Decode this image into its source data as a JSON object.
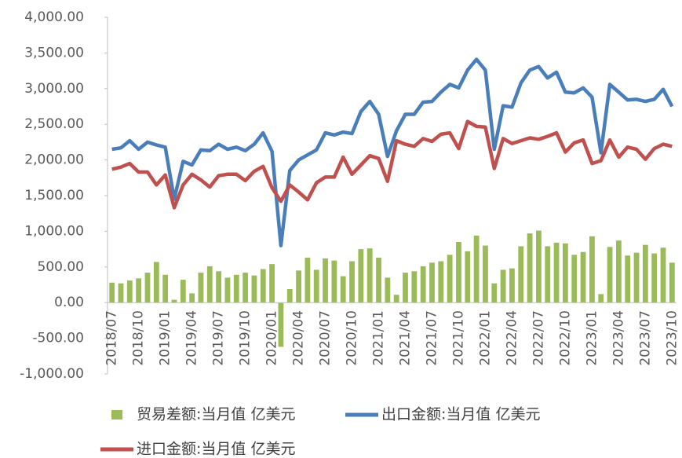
{
  "chart_data": {
    "type": "bar-line",
    "categories": [
      "2018/07",
      null,
      null,
      "2018/10",
      null,
      null,
      "2019/01",
      null,
      null,
      "2019/04",
      null,
      null,
      "2019/07",
      null,
      null,
      "2019/10",
      null,
      null,
      "2020/01",
      null,
      null,
      "2020/04",
      null,
      null,
      "2020/07",
      null,
      null,
      "2020/10",
      null,
      null,
      "2021/01",
      null,
      null,
      "2021/04",
      null,
      null,
      "2021/07",
      null,
      null,
      "2021/10",
      null,
      null,
      "2022/01",
      null,
      null,
      "2022/04",
      null,
      null,
      "2022/07",
      null,
      null,
      "2022/10",
      null,
      null,
      "2023/01",
      null,
      null,
      "2023/04",
      null,
      null,
      "2023/07",
      null,
      null,
      "2023/10"
    ],
    "series": [
      {
        "name": "贸易差额:当月值 亿美元",
        "type": "bar",
        "color": "#9bbb59",
        "values": [
          280,
          270,
          310,
          340,
          420,
          570,
          390,
          40,
          320,
          130,
          420,
          510,
          440,
          350,
          390,
          420,
          380,
          470,
          540,
          -620,
          190,
          450,
          630,
          460,
          620,
          590,
          370,
          580,
          750,
          760,
          630,
          350,
          110,
          420,
          440,
          510,
          560,
          580,
          670,
          850,
          720,
          940,
          800,
          270,
          460,
          480,
          790,
          970,
          1010,
          790,
          840,
          830,
          670,
          710,
          930,
          120,
          780,
          870,
          660,
          700,
          810,
          690,
          770,
          560
        ]
      },
      {
        "name": "出口金额:当月值 亿美元",
        "type": "line",
        "color": "#4a7ebb",
        "values": [
          2150,
          2170,
          2270,
          2150,
          2250,
          2210,
          2180,
          1450,
          1980,
          1930,
          2140,
          2130,
          2220,
          2150,
          2180,
          2130,
          2220,
          2380,
          2120,
          800,
          1850,
          2000,
          2070,
          2140,
          2380,
          2350,
          2390,
          2370,
          2680,
          2820,
          2640,
          2050,
          2410,
          2640,
          2640,
          2810,
          2820,
          2950,
          3060,
          3010,
          3260,
          3410,
          3260,
          2150,
          2760,
          2740,
          3080,
          3260,
          3310,
          3150,
          3230,
          2950,
          2940,
          3010,
          2880,
          2100,
          3060,
          2950,
          2840,
          2850,
          2820,
          2850,
          2990,
          2750
        ]
      },
      {
        "name": "进口金额:当月值 亿美元",
        "type": "line",
        "color": "#c0504d",
        "values": [
          1870,
          1900,
          1950,
          1830,
          1830,
          1650,
          1790,
          1330,
          1650,
          1800,
          1720,
          1620,
          1780,
          1800,
          1800,
          1710,
          1840,
          1910,
          1610,
          1420,
          1650,
          1550,
          1440,
          1680,
          1760,
          1760,
          2040,
          1800,
          1930,
          2060,
          2020,
          1700,
          2270,
          2220,
          2190,
          2300,
          2260,
          2360,
          2380,
          2160,
          2540,
          2470,
          2460,
          1880,
          2300,
          2230,
          2270,
          2310,
          2290,
          2330,
          2380,
          2110,
          2240,
          2280,
          1950,
          1990,
          2280,
          2040,
          2180,
          2150,
          2010,
          2160,
          2220,
          2190
        ]
      }
    ],
    "ylim": [
      -1000,
      4000
    ],
    "yticks": [
      {
        "value": -1000,
        "label": "-1,000.00"
      },
      {
        "value": -500,
        "label": "-500.00"
      },
      {
        "value": 0,
        "label": "0.00"
      },
      {
        "value": 500,
        "label": "500.00"
      },
      {
        "value": 1000,
        "label": "1,000.00"
      },
      {
        "value": 1500,
        "label": "1,500.00"
      },
      {
        "value": 2000,
        "label": "2,000.00"
      },
      {
        "value": 2500,
        "label": "2,500.00"
      },
      {
        "value": 3000,
        "label": "3,000.00"
      },
      {
        "value": 3500,
        "label": "3,500.00"
      },
      {
        "value": 4000,
        "label": "4,000.00"
      }
    ],
    "grid": false,
    "legend": "bottom"
  }
}
